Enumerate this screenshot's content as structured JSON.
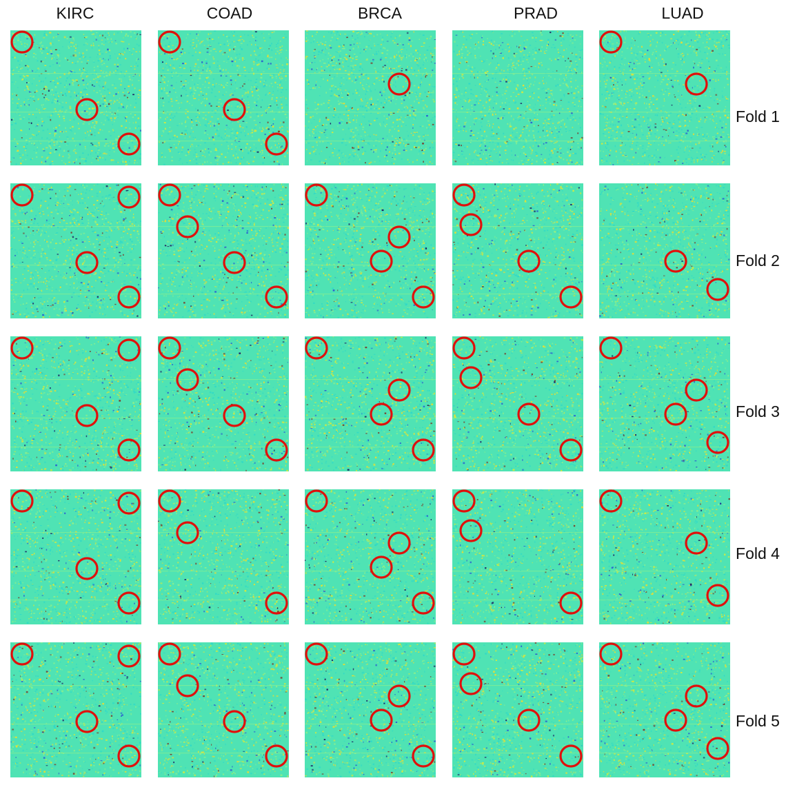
{
  "columns": [
    "KIRC",
    "COAD",
    "BRCA",
    "PRAD",
    "LUAD"
  ],
  "rows": [
    "Fold 1",
    "Fold 2",
    "Fold 3",
    "Fold 4",
    "Fold 5"
  ],
  "colors": {
    "map_base": "#4fe3b4",
    "highlight_ring": "#e0100c",
    "speckle_palette": [
      "#2fd9c8",
      "#8ff08a",
      "#d6ea3c",
      "#f2dc2a",
      "#2a5bd0",
      "#7a3b2a",
      "#1b1b60"
    ]
  }
}
